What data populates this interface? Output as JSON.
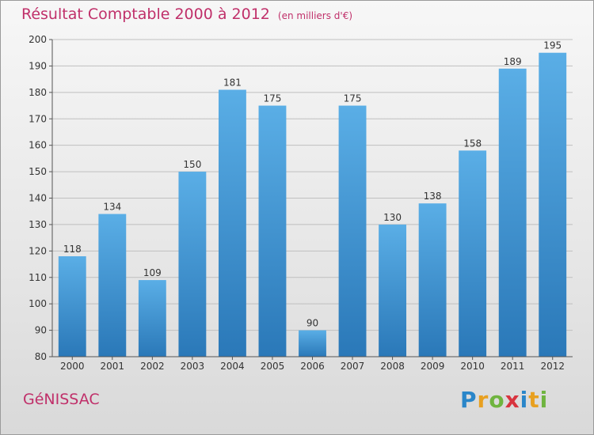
{
  "header": {
    "title": "Résultat Comptable 2000 à 2012",
    "unit": "(en milliers d'€)"
  },
  "footer": {
    "commune": "GéNISSAC",
    "logo_letters": [
      "P",
      "r",
      "o",
      "x",
      "i",
      "t",
      "i"
    ],
    "logo_colors": [
      "#2a86c9",
      "#e8a020",
      "#6fb43f",
      "#d8343f",
      "#2a86c9",
      "#e8a020",
      "#6fb43f"
    ]
  },
  "colors": {
    "title": "#c0306a",
    "bar_top": "#5aaee6",
    "bar_bottom": "#2a78b8",
    "grid": "#bfbfbf",
    "text": "#333333"
  },
  "chart_data": {
    "type": "bar",
    "title": "Résultat Comptable 2000 à 2012",
    "xlabel": "",
    "ylabel": "",
    "ylim": [
      80,
      200
    ],
    "yticks": [
      80,
      90,
      100,
      110,
      120,
      130,
      140,
      150,
      160,
      170,
      180,
      190,
      200
    ],
    "categories": [
      "2000",
      "2001",
      "2002",
      "2003",
      "2004",
      "2005",
      "2006",
      "2007",
      "2008",
      "2009",
      "2010",
      "2011",
      "2012"
    ],
    "values": [
      118,
      134,
      109,
      150,
      181,
      175,
      90,
      175,
      130,
      138,
      158,
      189,
      195
    ],
    "grid": true,
    "legend": "none"
  }
}
